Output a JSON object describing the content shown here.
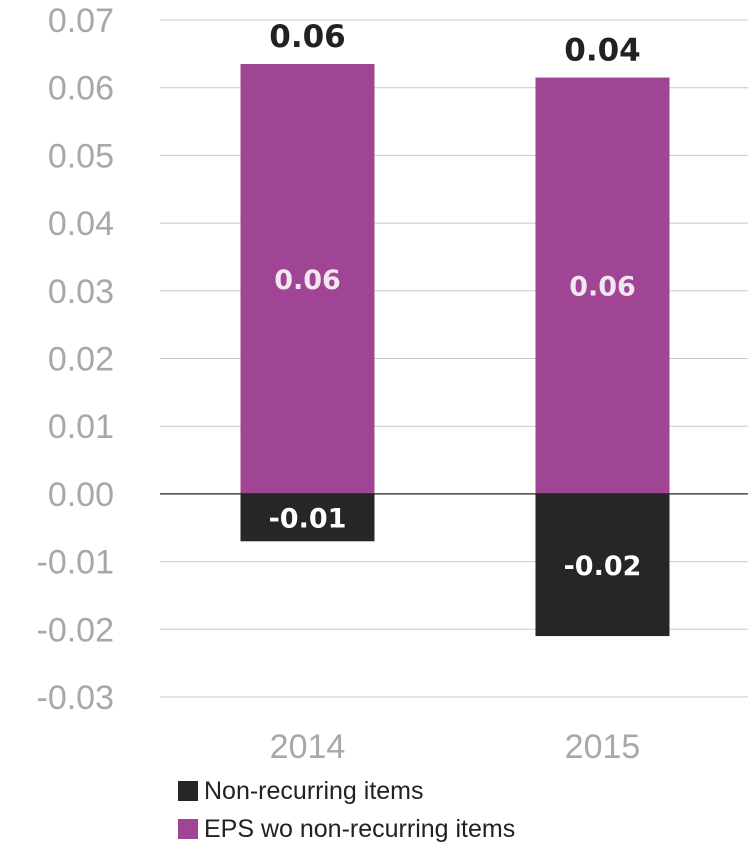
{
  "chart_data": {
    "type": "bar",
    "stacked": true,
    "categories": [
      "2014",
      "2015"
    ],
    "series": [
      {
        "name": "Non-recurring items",
        "values": [
          -0.007,
          -0.021
        ],
        "labels": [
          "-0.01",
          "-0.02"
        ],
        "color": "#262626",
        "label_color": "#ffffff"
      },
      {
        "name": "EPS wo non-recurring items",
        "values": [
          0.0635,
          0.0615
        ],
        "labels": [
          "0.06",
          "0.06"
        ],
        "color": "#a04494",
        "label_color": "#f2e6f0"
      }
    ],
    "totals": {
      "values": [
        0.0635,
        0.0615
      ],
      "labels": [
        "0.06",
        "0.04"
      ]
    },
    "yticks": [
      "0.07",
      "0.06",
      "0.05",
      "0.04",
      "0.03",
      "0.02",
      "0.01",
      "0.00",
      "-0.01",
      "-0.02",
      "-0.03"
    ],
    "ylim": [
      -0.03,
      0.07
    ],
    "grid": true,
    "legend_position": "bottom"
  }
}
